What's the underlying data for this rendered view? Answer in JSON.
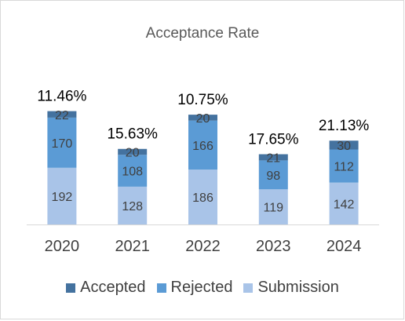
{
  "chart_data": {
    "type": "bar",
    "stacked": true,
    "title": "Acceptance Rate",
    "categories": [
      "2020",
      "2021",
      "2022",
      "2023",
      "2024"
    ],
    "series": [
      {
        "name": "Submission",
        "color": "#a9c4e8",
        "values": [
          192,
          128,
          186,
          119,
          142
        ]
      },
      {
        "name": "Rejected",
        "color": "#5b9bd5",
        "values": [
          170,
          108,
          166,
          98,
          112
        ]
      },
      {
        "name": "Accepted",
        "color": "#44729f",
        "values": [
          22,
          20,
          20,
          21,
          30
        ]
      }
    ],
    "rate_labels": [
      "11.46%",
      "15.63%",
      "10.75%",
      "17.65%",
      "21.13%"
    ],
    "ylim": [
      0,
      400
    ],
    "grid": false,
    "legend_position": "bottom",
    "legend_order": [
      "Accepted",
      "Rejected",
      "Submission"
    ]
  }
}
